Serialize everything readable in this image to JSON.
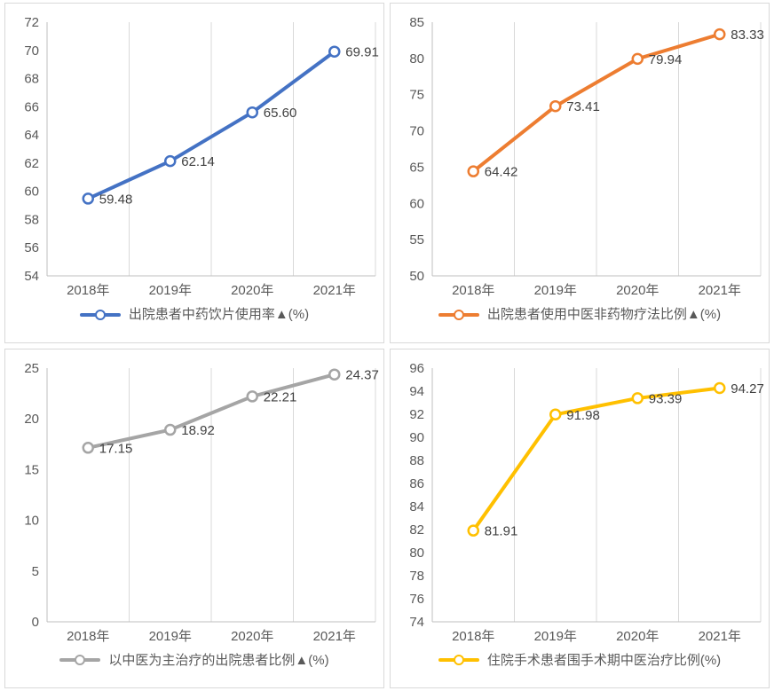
{
  "page": {
    "background": "#ffffff",
    "panel_border_color": "#d9d9d9",
    "gridline_color": "#d9d9d9",
    "axis_line_color": "#bfbfbf",
    "tick_label_color": "#595959",
    "data_label_color": "#404040",
    "category_label_color": "#595959",
    "legend_text_color": "#595959"
  },
  "chart_data": [
    {
      "position": "top-left",
      "type": "line",
      "series": "出院患者中药饮片使用率▲(%)",
      "color": "#4472C4",
      "categories": [
        "2018年",
        "2019年",
        "2020年",
        "2021年"
      ],
      "values": [
        59.48,
        62.14,
        65.6,
        69.91
      ],
      "data_labels": [
        "59.48",
        "62.14",
        "65.60",
        "69.91"
      ],
      "ylim": [
        54,
        72
      ],
      "ytick_step": 2,
      "grid": "vertical-only",
      "legend_position": "bottom",
      "marker": "open-circle"
    },
    {
      "position": "top-right",
      "type": "line",
      "series": "出院患者使用中医非药物疗法比例▲(%)",
      "color": "#ED7D31",
      "categories": [
        "2018年",
        "2019年",
        "2020年",
        "2021年"
      ],
      "values": [
        64.42,
        73.41,
        79.94,
        83.33
      ],
      "data_labels": [
        "64.42",
        "73.41",
        "79.94",
        "83.33"
      ],
      "ylim": [
        50,
        85
      ],
      "ytick_step": 5,
      "grid": "vertical-only",
      "legend_position": "bottom",
      "marker": "open-circle"
    },
    {
      "position": "bottom-left",
      "type": "line",
      "series": "以中医为主治疗的出院患者比例▲(%)",
      "color": "#A5A5A5",
      "categories": [
        "2018年",
        "2019年",
        "2020年",
        "2021年"
      ],
      "values": [
        17.15,
        18.92,
        22.21,
        24.37
      ],
      "data_labels": [
        "17.15",
        "18.92",
        "22.21",
        "24.37"
      ],
      "ylim": [
        0,
        25
      ],
      "ytick_step": 5,
      "grid": "vertical-only",
      "legend_position": "bottom",
      "marker": "open-circle"
    },
    {
      "position": "bottom-right",
      "type": "line",
      "series": "住院手术患者围手术期中医治疗比例(%)",
      "color": "#FFC000",
      "categories": [
        "2018年",
        "2019年",
        "2020年",
        "2021年"
      ],
      "values": [
        81.91,
        91.98,
        93.39,
        94.27
      ],
      "data_labels": [
        "81.91",
        "91.98",
        "93.39",
        "94.27"
      ],
      "ylim": [
        74,
        96
      ],
      "ytick_step": 2,
      "grid": "vertical-only",
      "legend_position": "bottom",
      "marker": "open-circle"
    }
  ]
}
